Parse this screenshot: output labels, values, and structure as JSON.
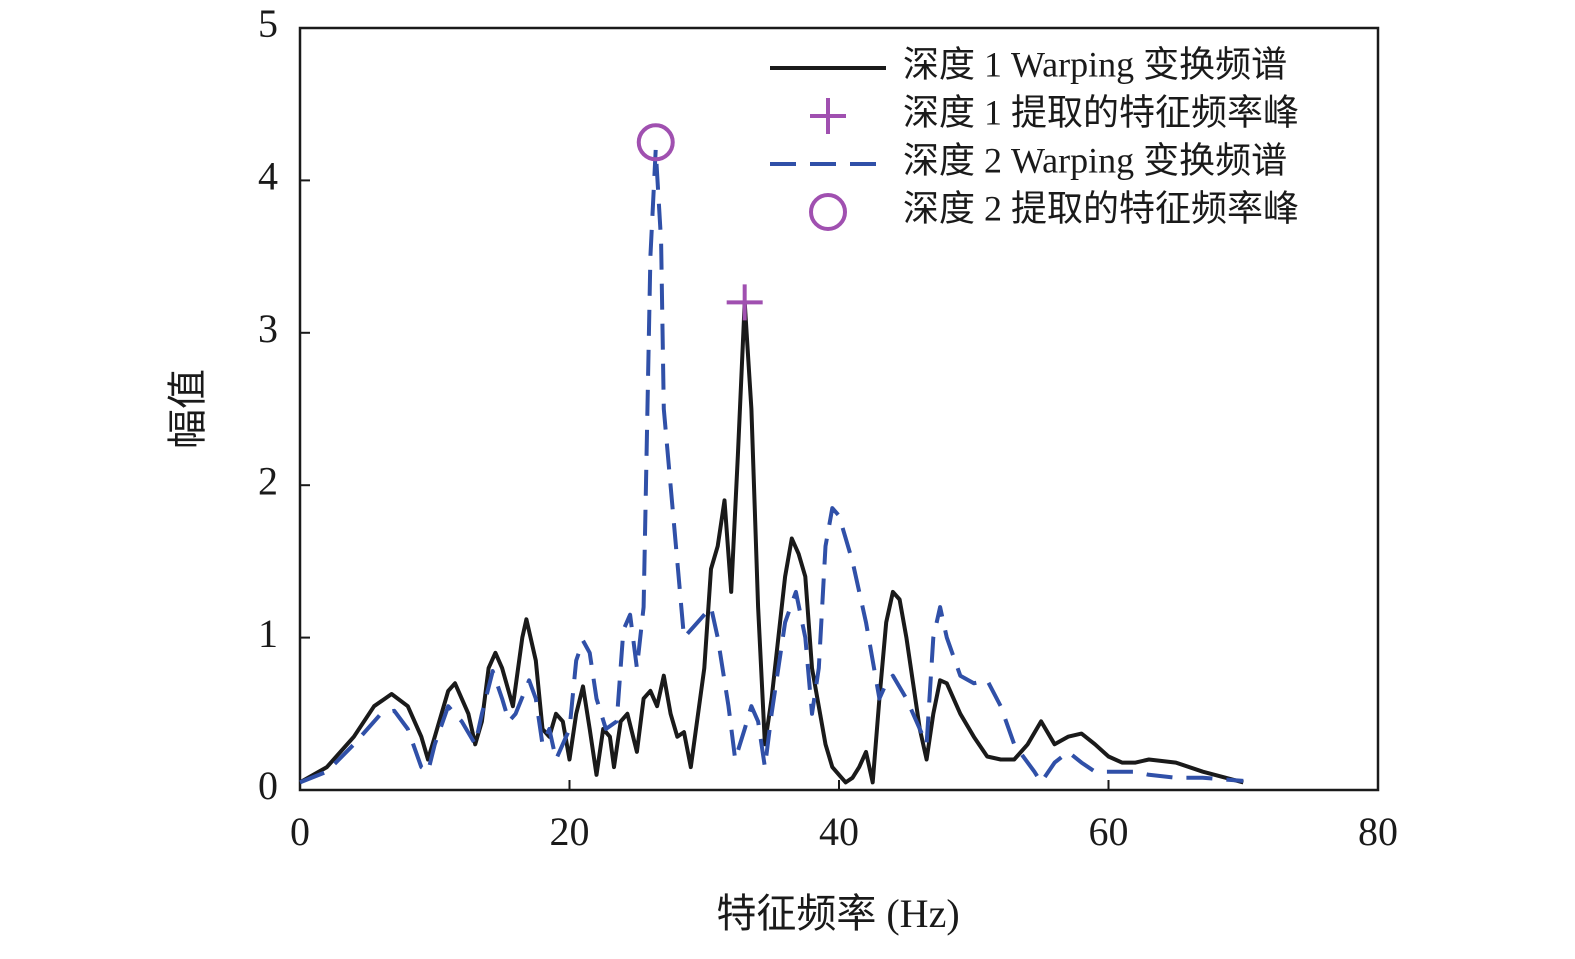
{
  "chart_data": {
    "type": "line",
    "xlabel": "特征频率 (Hz)",
    "ylabel": "幅值",
    "xlim": [
      0,
      80
    ],
    "xticks": [
      0,
      20,
      40,
      60,
      80
    ],
    "ylim": [
      0,
      5
    ],
    "yticks": [
      0,
      1,
      2,
      3,
      4,
      5
    ],
    "legend": "upper right",
    "series": [
      {
        "name": "深度 1 Warping 变换频谱",
        "color": "#1a1a1a",
        "style": "solid",
        "x": [
          0,
          2,
          4,
          5.5,
          6.8,
          8,
          9,
          9.5,
          10,
          11,
          11.5,
          12.5,
          13,
          13.5,
          14,
          14.5,
          15,
          15.8,
          16.5,
          16.8,
          17.5,
          18,
          18.5,
          19,
          19.5,
          20,
          20.5,
          21,
          21.5,
          22,
          22.5,
          23,
          23.3,
          23.8,
          24.3,
          25,
          25.5,
          26,
          26.5,
          27,
          27.5,
          28,
          28.5,
          29,
          30,
          30.5,
          31,
          31.5,
          32,
          32.5,
          33,
          33.5,
          34,
          34.5,
          35,
          36,
          36.5,
          37,
          37.5,
          38,
          39,
          39.5,
          40,
          40.5,
          41,
          41.5,
          42,
          42.5,
          43,
          43.5,
          44,
          44.5,
          45,
          45.5,
          46,
          46.5,
          47,
          47.5,
          48,
          49,
          50,
          51,
          52,
          53,
          54,
          55,
          56,
          57,
          58,
          59,
          60,
          61,
          62,
          63,
          65,
          67,
          70
        ],
        "values": [
          0.05,
          0.15,
          0.35,
          0.55,
          0.63,
          0.55,
          0.35,
          0.2,
          0.35,
          0.65,
          0.7,
          0.5,
          0.3,
          0.45,
          0.8,
          0.9,
          0.8,
          0.55,
          1.0,
          1.12,
          0.85,
          0.4,
          0.35,
          0.5,
          0.45,
          0.2,
          0.5,
          0.68,
          0.4,
          0.1,
          0.4,
          0.35,
          0.15,
          0.45,
          0.5,
          0.25,
          0.6,
          0.65,
          0.55,
          0.75,
          0.5,
          0.35,
          0.38,
          0.15,
          0.8,
          1.45,
          1.6,
          1.9,
          1.3,
          2.2,
          3.2,
          2.5,
          1.2,
          0.3,
          0.6,
          1.4,
          1.65,
          1.55,
          1.4,
          0.8,
          0.3,
          0.15,
          0.1,
          0.05,
          0.08,
          0.15,
          0.25,
          0.05,
          0.6,
          1.1,
          1.3,
          1.25,
          1.0,
          0.7,
          0.4,
          0.2,
          0.5,
          0.72,
          0.7,
          0.5,
          0.35,
          0.22,
          0.2,
          0.2,
          0.3,
          0.45,
          0.3,
          0.35,
          0.37,
          0.3,
          0.22,
          0.18,
          0.18,
          0.2,
          0.18,
          0.12,
          0.05
        ]
      },
      {
        "name": "深度 1 提取的特征频率峰",
        "color": "#a050b0",
        "marker": "+",
        "x": [
          33
        ],
        "values": [
          3.2
        ]
      },
      {
        "name": "深度 2 Warping 变换频谱",
        "color": "#3050a8",
        "style": "dashed",
        "x": [
          0,
          2,
          4,
          6,
          7,
          8,
          9,
          9.5,
          10,
          11,
          12,
          13,
          13.5,
          14.3,
          15,
          15.5,
          16,
          17,
          17.5,
          18,
          18.5,
          19,
          20,
          20.5,
          21,
          21.5,
          22,
          22.7,
          23.5,
          24,
          24.5,
          25,
          25.5,
          26,
          26.4,
          26.8,
          27,
          28,
          28.5,
          29.5,
          30.5,
          31,
          31.8,
          32.3,
          33,
          33.5,
          34,
          34.5,
          35,
          36,
          36.8,
          37.5,
          38,
          38.5,
          39,
          39.5,
          40,
          41,
          42,
          43,
          43.5,
          44,
          45,
          46,
          46.5,
          47,
          47.5,
          48,
          49,
          50,
          51,
          52,
          53,
          54.5,
          55,
          56,
          57,
          58,
          59,
          60,
          61,
          62,
          63,
          65,
          67,
          70
        ],
        "values": [
          0.05,
          0.12,
          0.3,
          0.5,
          0.52,
          0.4,
          0.15,
          0.12,
          0.3,
          0.55,
          0.45,
          0.3,
          0.5,
          0.78,
          0.6,
          0.45,
          0.5,
          0.72,
          0.6,
          0.3,
          0.4,
          0.2,
          0.4,
          0.85,
          0.98,
          0.9,
          0.6,
          0.4,
          0.45,
          1.05,
          1.15,
          0.8,
          1.2,
          3.5,
          4.2,
          3.6,
          2.5,
          1.5,
          1.0,
          1.1,
          1.2,
          1.0,
          0.55,
          0.2,
          0.4,
          0.55,
          0.45,
          0.15,
          0.5,
          1.1,
          1.3,
          1.0,
          0.5,
          0.8,
          1.6,
          1.85,
          1.8,
          1.5,
          1.1,
          0.6,
          0.7,
          0.75,
          0.6,
          0.4,
          0.3,
          1.0,
          1.2,
          1.0,
          0.75,
          0.7,
          0.72,
          0.55,
          0.3,
          0.12,
          0.05,
          0.18,
          0.25,
          0.18,
          0.12,
          0.12,
          0.12,
          0.12,
          0.1,
          0.08,
          0.08,
          0.06
        ]
      },
      {
        "name": "深度 2 提取的特征频率峰",
        "color": "#a050b0",
        "marker": "o",
        "x": [
          26.4
        ],
        "values": [
          4.25
        ]
      }
    ]
  }
}
